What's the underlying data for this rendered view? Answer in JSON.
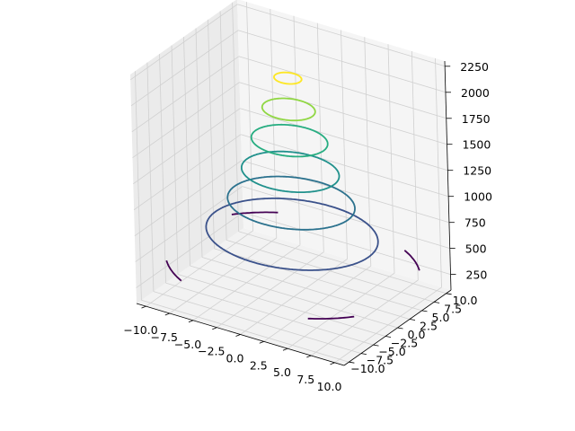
{
  "chart_data": {
    "type": "contour3d",
    "title": "",
    "xlabel": "",
    "ylabel": "",
    "zlabel": "",
    "xlim": [
      -11,
      11
    ],
    "ylim": [
      -11,
      11
    ],
    "zlim": [
      100,
      2300
    ],
    "x_ticks": [
      -10.0,
      -7.5,
      -5.0,
      -2.5,
      0.0,
      2.5,
      5.0,
      7.5,
      10.0
    ],
    "x_tick_labels": [
      "−10.0",
      "−7.5",
      "−5.0",
      "−2.5",
      "0.0",
      "2.5",
      "5.0",
      "7.5",
      "10.0"
    ],
    "y_ticks": [
      -10.0,
      -7.5,
      -5.0,
      -2.5,
      0.0,
      2.5,
      5.0,
      7.5,
      10.0
    ],
    "y_tick_labels": [
      "−10.0",
      "−7.5",
      "−5.0",
      "−2.5",
      "0.0",
      "2.5",
      "5.0",
      "7.5",
      "10.0"
    ],
    "z_ticks": [
      250,
      500,
      750,
      1000,
      1250,
      1500,
      1750,
      2000,
      2250
    ],
    "z_tick_labels": [
      "250",
      "500",
      "750",
      "1000",
      "1250",
      "1500",
      "1750",
      "2000",
      "2250"
    ],
    "grid": true,
    "colormap": "viridis",
    "levels": [
      {
        "z": 400,
        "radius": 12.0,
        "color": "#440154"
      },
      {
        "z": 700,
        "radius": 8.1,
        "color": "#3b528b"
      },
      {
        "z": 1000,
        "radius": 6.0,
        "color": "#2c728e"
      },
      {
        "z": 1300,
        "radius": 4.6,
        "color": "#21918c"
      },
      {
        "z": 1600,
        "radius": 3.6,
        "color": "#27ad81"
      },
      {
        "z": 1900,
        "radius": 2.5,
        "color": "#90d743"
      },
      {
        "z": 2200,
        "radius": 1.3,
        "color": "#fde725"
      }
    ]
  }
}
